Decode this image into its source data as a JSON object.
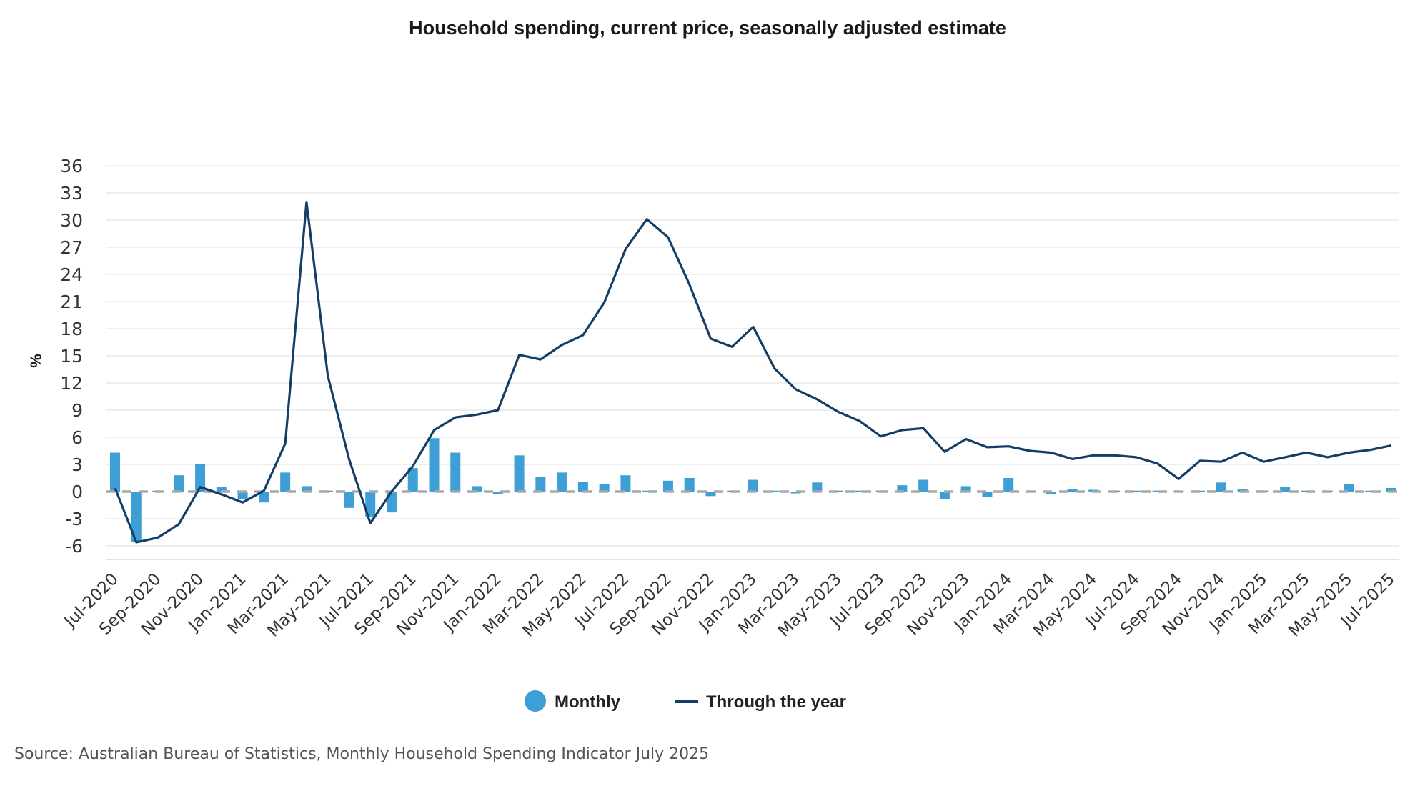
{
  "chart_data": {
    "type": "bar+line",
    "title": "Household spending, current price, seasonally adjusted estimate",
    "ylabel": "%",
    "xlabel": "",
    "ylim": [
      -7.5,
      36
    ],
    "yticks": [
      36,
      33,
      30,
      27,
      24,
      21,
      18,
      15,
      12,
      9,
      6,
      3,
      0,
      -3,
      -6
    ],
    "xtick_labels": [
      "Jul-2020",
      "Sep-2020",
      "Nov-2020",
      "Jan-2021",
      "Mar-2021",
      "May-2021",
      "Jul-2021",
      "Sep-2021",
      "Nov-2021",
      "Jan-2022",
      "Mar-2022",
      "May-2022",
      "Jul-2022",
      "Sep-2022",
      "Nov-2022",
      "Jan-2023",
      "Mar-2023",
      "May-2023",
      "Jul-2023",
      "Sep-2023",
      "Nov-2023",
      "Jan-2024",
      "Mar-2024",
      "May-2024",
      "Jul-2024",
      "Sep-2024",
      "Nov-2024",
      "Jan-2025",
      "Mar-2025",
      "May-2025",
      "Jul-2025"
    ],
    "categories": [
      "Jul-2020",
      "Aug-2020",
      "Sep-2020",
      "Oct-2020",
      "Nov-2020",
      "Dec-2020",
      "Jan-2021",
      "Feb-2021",
      "Mar-2021",
      "Apr-2021",
      "May-2021",
      "Jun-2021",
      "Jul-2021",
      "Aug-2021",
      "Sep-2021",
      "Oct-2021",
      "Nov-2021",
      "Dec-2021",
      "Jan-2022",
      "Feb-2022",
      "Mar-2022",
      "Apr-2022",
      "May-2022",
      "Jun-2022",
      "Jul-2022",
      "Aug-2022",
      "Sep-2022",
      "Oct-2022",
      "Nov-2022",
      "Dec-2022",
      "Jan-2023",
      "Feb-2023",
      "Mar-2023",
      "Apr-2023",
      "May-2023",
      "Jun-2023",
      "Jul-2023",
      "Aug-2023",
      "Sep-2023",
      "Oct-2023",
      "Nov-2023",
      "Dec-2023",
      "Jan-2024",
      "Feb-2024",
      "Mar-2024",
      "Apr-2024",
      "May-2024",
      "Jun-2024",
      "Jul-2024",
      "Aug-2024",
      "Sep-2024",
      "Oct-2024",
      "Nov-2024",
      "Dec-2024",
      "Jan-2025",
      "Feb-2025",
      "Mar-2025",
      "Apr-2025",
      "May-2025",
      "Jun-2025",
      "Jul-2025"
    ],
    "series": [
      {
        "name": "Monthly",
        "type": "bar",
        "color": "#3d9fd6",
        "values": [
          4.3,
          -5.6,
          0.1,
          1.8,
          3.0,
          0.5,
          -0.8,
          -1.2,
          2.1,
          0.6,
          0.1,
          -1.8,
          -2.8,
          -2.3,
          2.6,
          5.9,
          4.3,
          0.6,
          -0.3,
          4.0,
          1.6,
          2.1,
          1.1,
          0.8,
          1.8,
          0.1,
          1.2,
          1.5,
          -0.5,
          0.1,
          1.3,
          0.1,
          -0.2,
          1.0,
          0.1,
          0.1,
          0.1,
          0.7,
          1.3,
          -0.8,
          0.6,
          -0.6,
          1.5,
          -0.1,
          -0.3,
          0.3,
          0.2,
          0.1,
          0.1,
          0.1,
          0.1,
          0.1,
          1.0,
          0.3,
          0.1,
          0.5,
          0.1,
          0.1,
          0.8,
          0.1,
          0.4
        ]
      },
      {
        "name": "Through the year",
        "type": "line",
        "color": "#143e66",
        "values": [
          0.4,
          -5.6,
          -5.1,
          -3.6,
          0.5,
          -0.3,
          -1.2,
          0.1,
          5.3,
          32.0,
          12.8,
          3.6,
          -3.5,
          0.0,
          2.8,
          6.8,
          8.2,
          8.5,
          9.0,
          15.1,
          14.6,
          16.2,
          17.3,
          20.9,
          26.8,
          30.1,
          28.1,
          22.9,
          16.9,
          16.0,
          18.2,
          13.6,
          11.3,
          10.2,
          8.8,
          7.8,
          6.1,
          6.8,
          7.0,
          4.4,
          5.8,
          4.9,
          5.0,
          4.5,
          4.3,
          3.6,
          4.0,
          4.0,
          3.8,
          3.1,
          1.4,
          3.4,
          3.3,
          4.3,
          3.3,
          3.8,
          4.3,
          3.8,
          4.3,
          4.6,
          5.1
        ]
      }
    ],
    "legend": {
      "position": "bottom-center",
      "items": [
        {
          "label": "Monthly",
          "marker": "circle",
          "color": "#3d9fd6"
        },
        {
          "label": "Through the year",
          "marker": "line",
          "color": "#143e66"
        }
      ]
    },
    "zero_line": {
      "style": "dashed",
      "color": "#a8a8a8"
    },
    "grid": true,
    "source": "Source: Australian Bureau of Statistics, Monthly Household Spending Indicator July 2025"
  }
}
